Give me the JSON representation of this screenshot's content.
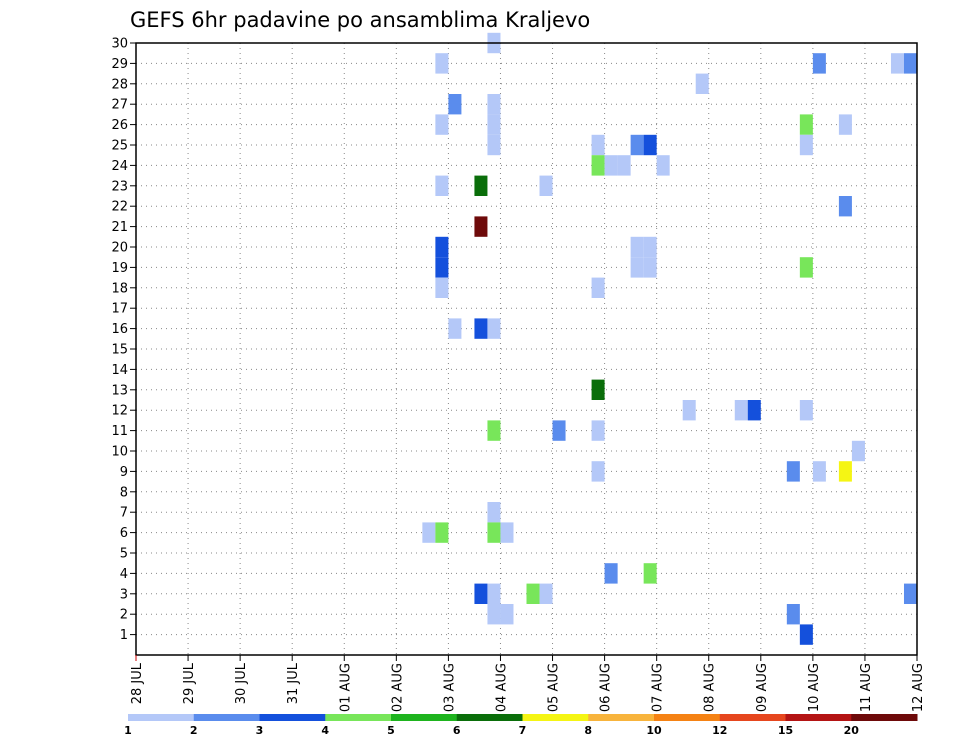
{
  "chart_data": {
    "type": "heatmap",
    "title": "GEFS 6hr padavine po ansamblima Kraljevo",
    "xlabel": "",
    "ylabel": "",
    "x_tick_labels": [
      "28 JUL",
      "29 JUL",
      "30 JUL",
      "31 JUL",
      "01 AUG",
      "02 AUG",
      "03 AUG",
      "04 AUG",
      "05 AUG",
      "06 AUG",
      "07 AUG",
      "08 AUG",
      "09 AUG",
      "10 AUG",
      "11 AUG",
      "12 AUG"
    ],
    "y_tick_labels": [
      "1",
      "2",
      "3",
      "4",
      "5",
      "6",
      "7",
      "8",
      "9",
      "10",
      "11",
      "12",
      "13",
      "14",
      "15",
      "16",
      "17",
      "18",
      "19",
      "20",
      "21",
      "22",
      "23",
      "24",
      "25",
      "26",
      "27",
      "28",
      "29",
      "30"
    ],
    "x_unit": "6-hour step",
    "x_range": [
      0,
      60
    ],
    "y_range": [
      1,
      30
    ],
    "grid": true,
    "legend_position": "bottom",
    "legend": {
      "thresholds": [
        "1",
        "2",
        "3",
        "4",
        "5",
        "6",
        "7",
        "8",
        "10",
        "12",
        "15",
        "20"
      ],
      "colors": [
        "#b4c8f8",
        "#5a8ced",
        "#1450dc",
        "#78e65a",
        "#1eb41e",
        "#0a6e0a",
        "#f5f514",
        "#f8b43c",
        "#f58214",
        "#e6461e",
        "#b41414",
        "#6e0a0a"
      ]
    },
    "cells": [
      {
        "x": 27.5,
        "y": 30,
        "c": "#b4c8f8"
      },
      {
        "x": 23.5,
        "y": 29,
        "c": "#b4c8f8"
      },
      {
        "x": 52.5,
        "y": 29,
        "c": "#5a8ced"
      },
      {
        "x": 58.5,
        "y": 29,
        "c": "#b4c8f8"
      },
      {
        "x": 59.5,
        "y": 29,
        "c": "#5a8ced"
      },
      {
        "x": 43.5,
        "y": 28,
        "c": "#b4c8f8"
      },
      {
        "x": 24.5,
        "y": 27,
        "c": "#5a8ced"
      },
      {
        "x": 27.5,
        "y": 27,
        "c": "#b4c8f8"
      },
      {
        "x": 23.5,
        "y": 26,
        "c": "#b4c8f8"
      },
      {
        "x": 27.5,
        "y": 26,
        "c": "#b4c8f8"
      },
      {
        "x": 51.5,
        "y": 26,
        "c": "#78e65a"
      },
      {
        "x": 54.5,
        "y": 26,
        "c": "#b4c8f8"
      },
      {
        "x": 27.5,
        "y": 25,
        "c": "#b4c8f8"
      },
      {
        "x": 35.5,
        "y": 25,
        "c": "#b4c8f8"
      },
      {
        "x": 38.5,
        "y": 25,
        "c": "#5a8ced"
      },
      {
        "x": 39.5,
        "y": 25,
        "c": "#1450dc"
      },
      {
        "x": 51.5,
        "y": 25,
        "c": "#b4c8f8"
      },
      {
        "x": 35.5,
        "y": 24,
        "c": "#78e65a"
      },
      {
        "x": 36.5,
        "y": 24,
        "c": "#b4c8f8"
      },
      {
        "x": 37.5,
        "y": 24,
        "c": "#b4c8f8"
      },
      {
        "x": 40.5,
        "y": 24,
        "c": "#b4c8f8"
      },
      {
        "x": 23.5,
        "y": 23,
        "c": "#b4c8f8"
      },
      {
        "x": 26.5,
        "y": 23,
        "c": "#0a6e0a"
      },
      {
        "x": 31.5,
        "y": 23,
        "c": "#b4c8f8"
      },
      {
        "x": 54.5,
        "y": 22,
        "c": "#5a8ced"
      },
      {
        "x": 26.5,
        "y": 21,
        "c": "#6e0a0a"
      },
      {
        "x": 23.5,
        "y": 20,
        "c": "#1450dc"
      },
      {
        "x": 38.5,
        "y": 20,
        "c": "#b4c8f8"
      },
      {
        "x": 39.5,
        "y": 20,
        "c": "#b4c8f8"
      },
      {
        "x": 23.5,
        "y": 19,
        "c": "#1450dc"
      },
      {
        "x": 38.5,
        "y": 19,
        "c": "#b4c8f8"
      },
      {
        "x": 39.5,
        "y": 19,
        "c": "#b4c8f8"
      },
      {
        "x": 51.5,
        "y": 19,
        "c": "#78e65a"
      },
      {
        "x": 23.5,
        "y": 18,
        "c": "#b4c8f8"
      },
      {
        "x": 35.5,
        "y": 18,
        "c": "#b4c8f8"
      },
      {
        "x": 24.5,
        "y": 16,
        "c": "#b4c8f8"
      },
      {
        "x": 26.5,
        "y": 16,
        "c": "#1450dc"
      },
      {
        "x": 27.5,
        "y": 16,
        "c": "#b4c8f8"
      },
      {
        "x": 35.5,
        "y": 13,
        "c": "#0a6e0a"
      },
      {
        "x": 42.5,
        "y": 12,
        "c": "#b4c8f8"
      },
      {
        "x": 46.5,
        "y": 12,
        "c": "#b4c8f8"
      },
      {
        "x": 47.5,
        "y": 12,
        "c": "#1450dc"
      },
      {
        "x": 51.5,
        "y": 12,
        "c": "#b4c8f8"
      },
      {
        "x": 27.5,
        "y": 11,
        "c": "#78e65a"
      },
      {
        "x": 32.5,
        "y": 11,
        "c": "#5a8ced"
      },
      {
        "x": 35.5,
        "y": 11,
        "c": "#b4c8f8"
      },
      {
        "x": 55.5,
        "y": 10,
        "c": "#b4c8f8"
      },
      {
        "x": 35.5,
        "y": 9,
        "c": "#b4c8f8"
      },
      {
        "x": 50.5,
        "y": 9,
        "c": "#5a8ced"
      },
      {
        "x": 52.5,
        "y": 9,
        "c": "#b4c8f8"
      },
      {
        "x": 54.5,
        "y": 9,
        "c": "#f5f514"
      },
      {
        "x": 27.5,
        "y": 7,
        "c": "#b4c8f8"
      },
      {
        "x": 22.5,
        "y": 6,
        "c": "#b4c8f8"
      },
      {
        "x": 23.5,
        "y": 6,
        "c": "#78e65a"
      },
      {
        "x": 27.5,
        "y": 6,
        "c": "#78e65a"
      },
      {
        "x": 28.5,
        "y": 6,
        "c": "#b4c8f8"
      },
      {
        "x": 36.5,
        "y": 4,
        "c": "#5a8ced"
      },
      {
        "x": 39.5,
        "y": 4,
        "c": "#78e65a"
      },
      {
        "x": 26.5,
        "y": 3,
        "c": "#1450dc"
      },
      {
        "x": 27.5,
        "y": 3,
        "c": "#b4c8f8"
      },
      {
        "x": 30.5,
        "y": 3,
        "c": "#78e65a"
      },
      {
        "x": 31.5,
        "y": 3,
        "c": "#b4c8f8"
      },
      {
        "x": 59.5,
        "y": 3,
        "c": "#5a8ced"
      },
      {
        "x": 27.5,
        "y": 2,
        "c": "#b4c8f8"
      },
      {
        "x": 28.5,
        "y": 2,
        "c": "#b4c8f8"
      },
      {
        "x": 50.5,
        "y": 2,
        "c": "#5a8ced"
      },
      {
        "x": 51.5,
        "y": 1,
        "c": "#1450dc"
      }
    ]
  }
}
